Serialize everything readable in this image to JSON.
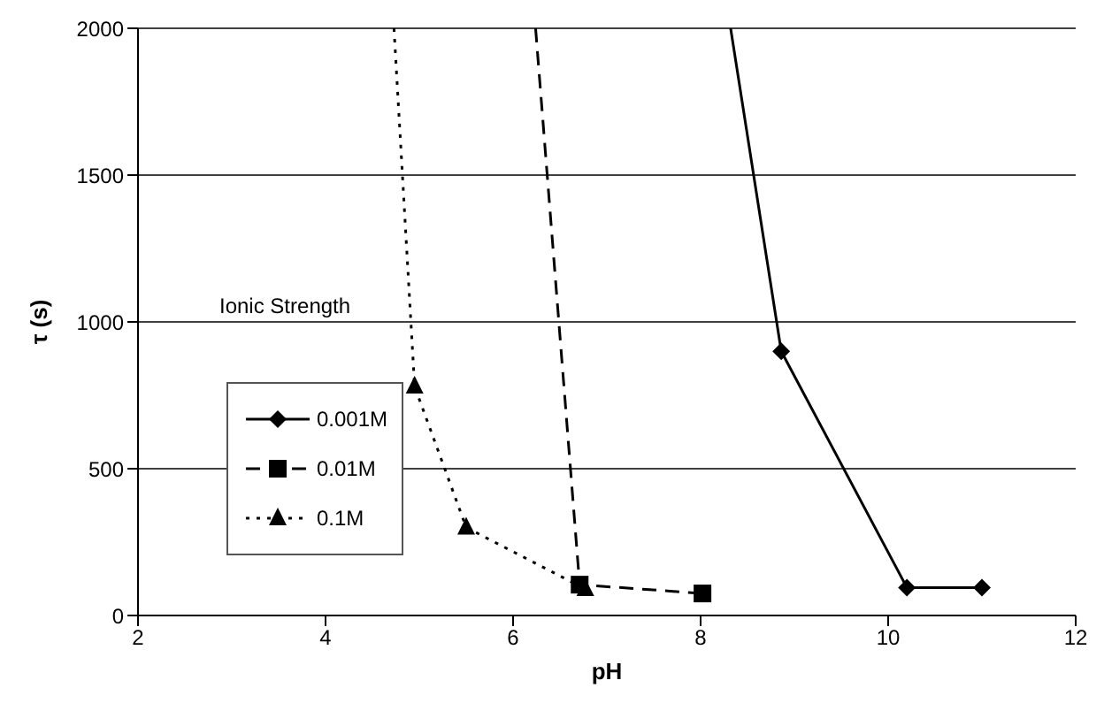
{
  "chart_data": {
    "type": "line",
    "xlabel": "pH",
    "ylabel": "τ (s)",
    "legend_title": "Ionic Strength",
    "legend": "left",
    "grid": "y",
    "xlim": [
      2,
      12
    ],
    "xticks": [
      2,
      4,
      6,
      8,
      10,
      12
    ],
    "ylim": [
      0,
      2000
    ],
    "yticks": [
      0,
      500,
      1000,
      1500,
      2000
    ],
    "series": [
      {
        "name": "0.001M",
        "color": "#000000",
        "marker": "diamond",
        "line_style": "solid",
        "x": [
          8.32,
          8.86,
          10.2,
          11.0
        ],
        "values": [
          2000,
          900,
          95,
          95
        ]
      },
      {
        "name": "0.01M",
        "color": "#000000",
        "marker": "square",
        "line_style": "dashed",
        "x": [
          6.24,
          6.71,
          8.02
        ],
        "values": [
          2000,
          105,
          75
        ]
      },
      {
        "name": "0.1M",
        "color": "#000000",
        "marker": "triangle",
        "line_style": "dotted",
        "x": [
          4.73,
          4.95,
          5.5,
          6.77
        ],
        "values": [
          2000,
          780,
          300,
          90
        ]
      }
    ]
  }
}
